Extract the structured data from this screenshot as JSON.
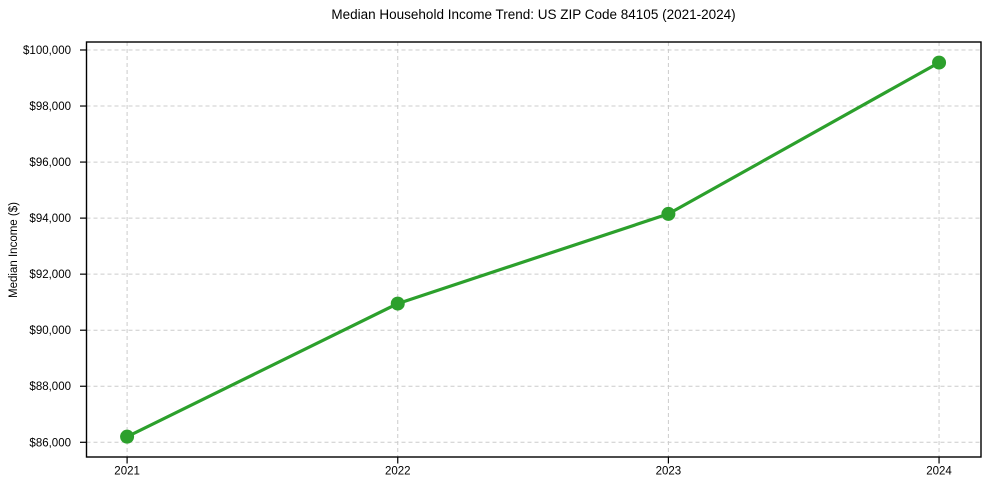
{
  "chart_data": {
    "type": "line",
    "title": "Median Household Income Trend: US ZIP Code 84105 (2021-2024)",
    "xlabel": "",
    "ylabel": "Median Income ($)",
    "x": [
      2021,
      2022,
      2023,
      2024
    ],
    "x_tick_labels": [
      "2021",
      "2022",
      "2023",
      "2024"
    ],
    "series": [
      {
        "name": "Median Household Income",
        "values": [
          86200,
          90950,
          94150,
          99550
        ],
        "color": "#2ca02c",
        "marker": "circle"
      }
    ],
    "y_ticks": [
      86000,
      88000,
      90000,
      92000,
      94000,
      96000,
      98000,
      100000
    ],
    "y_tick_labels": [
      "$86,000",
      "$88,000",
      "$90,000",
      "$92,000",
      "$94,000",
      "$96,000",
      "$98,000",
      "$100,000"
    ],
    "xlim": [
      2020.85,
      2024.155
    ],
    "ylim": [
      85475,
      100285
    ],
    "grid": true,
    "grid_style": "dashed",
    "legend_visible": false
  },
  "colors": {
    "line": "#2ca02c",
    "marker": "#2ca02c",
    "grid": "#cccccc",
    "spine": "#000000",
    "tick": "#000000",
    "text": "#000000",
    "background": "#ffffff"
  }
}
